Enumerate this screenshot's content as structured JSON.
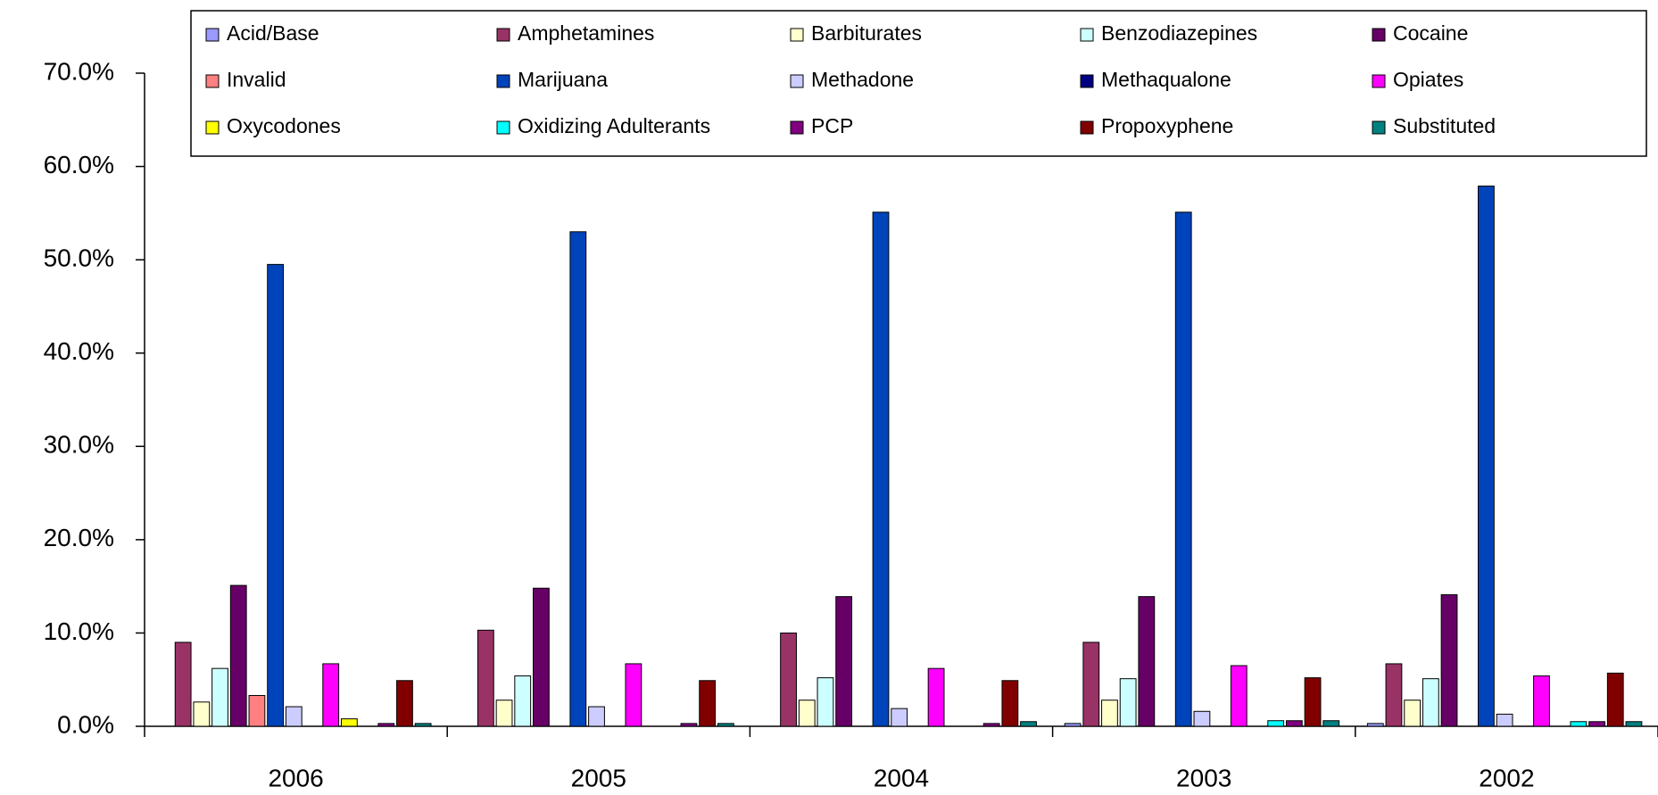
{
  "chart_data": {
    "type": "bar",
    "categories": [
      "2006",
      "2005",
      "2004",
      "2003",
      "2002"
    ],
    "ylim": [
      0,
      70
    ],
    "yticks": [
      {
        "value": 0,
        "label": "0.0%"
      },
      {
        "value": 10,
        "label": "10.0%"
      },
      {
        "value": 20,
        "label": "20.0%"
      },
      {
        "value": 30,
        "label": "30.0%"
      },
      {
        "value": 40,
        "label": "40.0%"
      },
      {
        "value": 50,
        "label": "50.0%"
      },
      {
        "value": 60,
        "label": "60.0%"
      },
      {
        "value": 70,
        "label": "70.0%"
      }
    ],
    "legend": "top",
    "series": [
      {
        "name": "Acid/Base",
        "color": "#9999ff",
        "values": [
          0,
          0,
          0,
          0.3,
          0.3
        ]
      },
      {
        "name": "Amphetamines",
        "color": "#993366",
        "values": [
          9.0,
          10.3,
          10.0,
          9.0,
          6.7
        ]
      },
      {
        "name": "Barbiturates",
        "color": "#ffffcc",
        "values": [
          2.6,
          2.8,
          2.8,
          2.8,
          2.8
        ]
      },
      {
        "name": "Benzodiazepines",
        "color": "#ccffff",
        "values": [
          6.2,
          5.4,
          5.2,
          5.1,
          5.1
        ]
      },
      {
        "name": "Cocaine",
        "color": "#660066",
        "values": [
          15.1,
          14.8,
          13.9,
          13.9,
          14.1
        ]
      },
      {
        "name": "Invalid",
        "color": "#ff8080",
        "values": [
          3.3,
          0,
          0,
          0,
          0
        ]
      },
      {
        "name": "Marijuana",
        "color": "#0044bb",
        "values": [
          49.5,
          53.0,
          55.1,
          55.1,
          57.9
        ]
      },
      {
        "name": "Methadone",
        "color": "#ccccff",
        "values": [
          2.1,
          2.1,
          1.9,
          1.6,
          1.3
        ]
      },
      {
        "name": "Methaqualone",
        "color": "#000080",
        "values": [
          0,
          0,
          0,
          0,
          0
        ]
      },
      {
        "name": "Opiates",
        "color": "#ff00ff",
        "values": [
          6.7,
          6.7,
          6.2,
          6.5,
          5.4
        ]
      },
      {
        "name": "Oxycodones",
        "color": "#ffff00",
        "values": [
          0.8,
          0,
          0,
          0,
          0
        ]
      },
      {
        "name": "Oxidizing Adulterants",
        "color": "#00ffff",
        "values": [
          0,
          0,
          0,
          0.6,
          0.5
        ]
      },
      {
        "name": "PCP",
        "color": "#800080",
        "values": [
          0.3,
          0.3,
          0.3,
          0.6,
          0.5
        ]
      },
      {
        "name": "Propoxyphene",
        "color": "#800000",
        "values": [
          4.9,
          4.9,
          4.9,
          5.2,
          5.7
        ]
      },
      {
        "name": "Substituted",
        "color": "#008080",
        "values": [
          0.3,
          0.3,
          0.5,
          0.6,
          0.5
        ]
      }
    ]
  }
}
